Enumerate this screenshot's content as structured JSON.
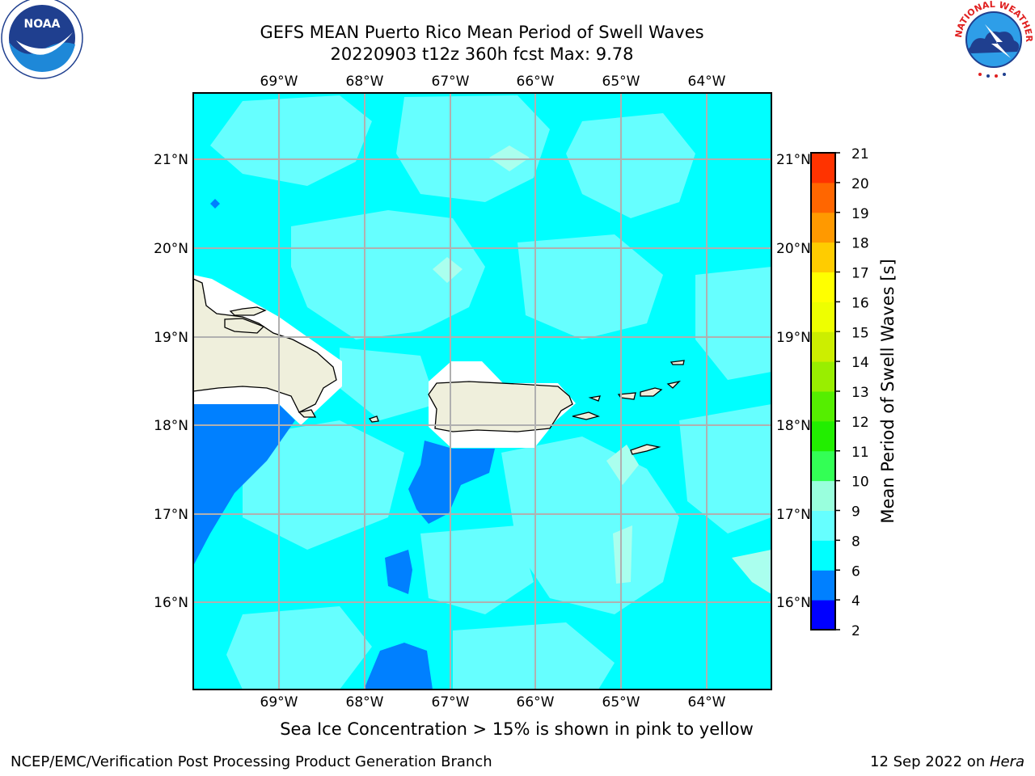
{
  "header": {
    "title_line1": "GEFS MEAN Puerto Rico Mean Period of Swell Waves",
    "title_line2": "20220903 t12z 360h fcst   Max: 9.78"
  },
  "logos": {
    "left": {
      "name": "NOAA",
      "ring_text": "NATIONAL OCEANIC AND ATMOSPHERIC ADMINISTRATION · U.S. DEPARTMENT OF COMMERCE"
    },
    "right": {
      "name": "NATIONAL WEATHER SERVICE"
    }
  },
  "map": {
    "lon_labels": [
      "69°W",
      "68°W",
      "67°W",
      "66°W",
      "65°W",
      "64°W"
    ],
    "lat_labels": [
      "21°N",
      "20°N",
      "19°N",
      "18°N",
      "17°N",
      "16°N"
    ],
    "land_color": "#efefdc",
    "no_data_color": "#ffffff"
  },
  "colorbar": {
    "label": "Mean Period of Swell Waves [s]",
    "ticks": [
      "2",
      "4",
      "6",
      "8",
      "9",
      "10",
      "11",
      "12",
      "13",
      "14",
      "15",
      "16",
      "17",
      "18",
      "19",
      "20",
      "21"
    ],
    "colors": [
      "#0000ff",
      "#0080ff",
      "#00ffff",
      "#66ffff",
      "#99ffdd",
      "#33ff55",
      "#22ee00",
      "#55ee00",
      "#99ee00",
      "#ccee00",
      "#eeff00",
      "#ffff00",
      "#ffcc00",
      "#ff9900",
      "#ff6600",
      "#ff3300"
    ]
  },
  "caption": "Sea Ice Concentration > 15% is shown in pink to yellow",
  "footer": {
    "left": "NCEP/EMC/Verification Post Processing Product Generation Branch",
    "right_date": "12 Sep 2022 on ",
    "right_host": "Hera"
  }
}
